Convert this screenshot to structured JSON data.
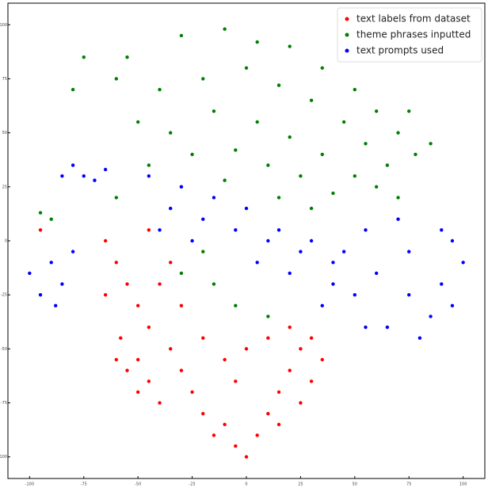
{
  "chart_data": {
    "type": "scatter",
    "xlim": [
      -110,
      110
    ],
    "ylim": [
      -110,
      110
    ],
    "xticks": [
      -100,
      -75,
      -50,
      -25,
      0,
      25,
      50,
      75,
      100
    ],
    "yticks": [
      -100,
      -75,
      -50,
      -25,
      0,
      25,
      50,
      75,
      100
    ],
    "legend": "upper right",
    "series": [
      {
        "name": "text labels from dataset",
        "color": "#ff0000",
        "x": [
          -65,
          -60,
          -55,
          -50,
          -45,
          -65,
          -58,
          -50,
          -45,
          -40,
          -35,
          -30,
          -25,
          -20,
          -15,
          -10,
          -5,
          0,
          5,
          10,
          15,
          20,
          25,
          30,
          20,
          10,
          0,
          -10,
          -20,
          -40,
          -35,
          -30,
          -55,
          -50,
          -60,
          -5,
          15,
          25,
          30,
          -95,
          35,
          -45
        ],
        "values": [
          0,
          -10,
          -20,
          -30,
          -40,
          -25,
          -45,
          -55,
          -65,
          -75,
          -50,
          -60,
          -70,
          -80,
          -90,
          -85,
          -95,
          -100,
          -90,
          -80,
          -70,
          -60,
          -50,
          -45,
          -40,
          -45,
          -50,
          -55,
          -45,
          -20,
          -10,
          -30,
          -60,
          -70,
          -55,
          -65,
          -85,
          -75,
          -65,
          5,
          -55,
          5
        ]
      },
      {
        "name": "theme phrases inputted",
        "color": "#008000",
        "x": [
          -55,
          -30,
          -10,
          5,
          20,
          35,
          50,
          60,
          70,
          78,
          -40,
          -20,
          0,
          15,
          30,
          45,
          55,
          65,
          -50,
          -35,
          -15,
          5,
          20,
          35,
          50,
          60,
          -45,
          -25,
          -5,
          10,
          25,
          40,
          -60,
          -30,
          -10,
          15,
          30,
          -75,
          -80,
          -95,
          -90,
          -20,
          -15,
          -5,
          10,
          -30,
          -60,
          85,
          75,
          70
        ],
        "values": [
          85,
          95,
          98,
          92,
          90,
          80,
          70,
          60,
          50,
          40,
          70,
          75,
          80,
          72,
          65,
          55,
          45,
          35,
          55,
          50,
          60,
          55,
          48,
          40,
          30,
          25,
          35,
          40,
          42,
          35,
          30,
          22,
          20,
          25,
          28,
          20,
          15,
          85,
          70,
          13,
          10,
          -5,
          -20,
          -30,
          -35,
          -15,
          75,
          45,
          60,
          20
        ]
      },
      {
        "name": "text prompts used",
        "color": "#0000ff",
        "x": [
          -45,
          -30,
          -15,
          0,
          15,
          30,
          45,
          60,
          75,
          85,
          95,
          100,
          90,
          70,
          55,
          40,
          25,
          10,
          -5,
          -20,
          -35,
          -40,
          -25,
          50,
          65,
          80,
          90,
          55,
          40,
          20,
          5,
          -80,
          -75,
          -70,
          -65,
          -85,
          -100,
          -95,
          -90,
          -85,
          -80,
          -88,
          35,
          75,
          95
        ],
        "values": [
          30,
          25,
          20,
          15,
          5,
          0,
          -5,
          -15,
          -25,
          -35,
          -30,
          -10,
          5,
          10,
          5,
          -10,
          -5,
          0,
          5,
          10,
          15,
          5,
          0,
          -25,
          -40,
          -45,
          -20,
          -40,
          -20,
          -15,
          -10,
          35,
          30,
          28,
          33,
          30,
          -15,
          -25,
          -10,
          -20,
          -5,
          -30,
          -30,
          -5,
          0
        ]
      }
    ]
  }
}
